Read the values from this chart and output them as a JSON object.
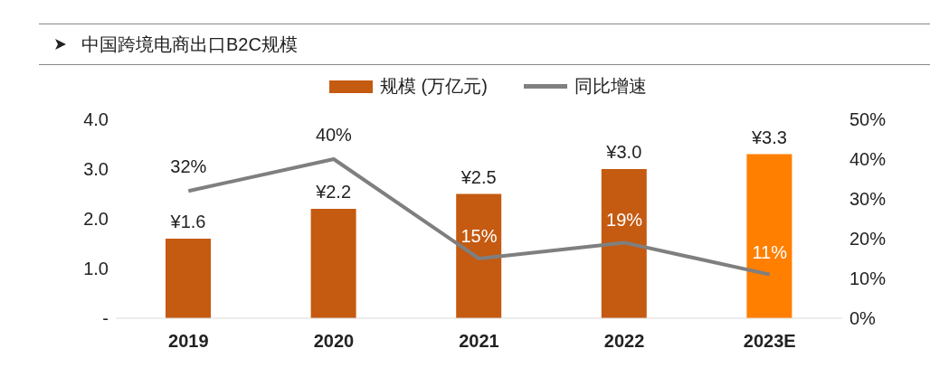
{
  "chart_data": {
    "type": "bar",
    "title": "中国跨境电商出口B2C规模",
    "categories": [
      "2019",
      "2020",
      "2021",
      "2022",
      "2023E"
    ],
    "series": [
      {
        "name": "规模 (万亿元)",
        "colors": [
          "#c55a11",
          "#c55a11",
          "#c55a11",
          "#c55a11",
          "#ff7f00"
        ],
        "values": [
          1.6,
          2.2,
          2.5,
          3.0,
          3.3
        ],
        "value_labels": [
          "¥1.6",
          "¥2.2",
          "¥2.5",
          "¥3.0",
          "¥3.3"
        ]
      },
      {
        "name": "同比增速",
        "type": "line",
        "axis": "y2",
        "color": "#7f7f7f",
        "values": [
          32,
          40,
          15,
          19,
          11
        ],
        "value_labels": [
          "32%",
          "40%",
          "15%",
          "19%",
          "11%"
        ]
      }
    ],
    "ylim": [
      0,
      4
    ],
    "yticks": [
      {
        "value": 0,
        "label": "-"
      },
      {
        "value": 1,
        "label": "1.0"
      },
      {
        "value": 2,
        "label": "2.0"
      },
      {
        "value": 3,
        "label": "3.0"
      },
      {
        "value": 4,
        "label": "4.0"
      }
    ],
    "y2lim": [
      0,
      50
    ],
    "y2ticks": [
      {
        "value": 0,
        "label": "0%"
      },
      {
        "value": 10,
        "label": "10%"
      },
      {
        "value": 20,
        "label": "20%"
      },
      {
        "value": 30,
        "label": "30%"
      },
      {
        "value": 40,
        "label": "40%"
      },
      {
        "value": 50,
        "label": "50%"
      }
    ],
    "legend": "top",
    "grid": false,
    "marker": "none",
    "line_style": "solid"
  }
}
